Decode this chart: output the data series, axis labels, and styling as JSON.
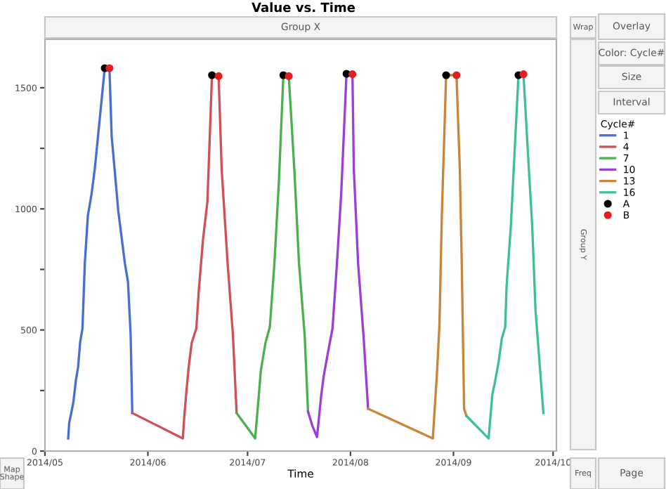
{
  "chart_data": {
    "type": "line",
    "title": "Value vs. Time",
    "xlabel": "Time",
    "legend_title": "Cycle#",
    "legend": "right",
    "grid": false,
    "xlim": [
      "2014-05-01",
      "2014-10-02"
    ],
    "xticks": [
      {
        "value": "2014-05-01",
        "label": "2014/05"
      },
      {
        "value": "2014-06-01",
        "label": "2014/06"
      },
      {
        "value": "2014-07-01",
        "label": "2014/07"
      },
      {
        "value": "2014-08-01",
        "label": "2014/08"
      },
      {
        "value": "2014-09-01",
        "label": "2014/09"
      },
      {
        "value": "2014-10-01",
        "label": "2014/10"
      }
    ],
    "ylim": [
      0,
      1700
    ],
    "yticks": [
      0,
      {
        "value": 250,
        "label": null
      },
      500,
      {
        "value": 750,
        "label": null
      },
      1000,
      {
        "value": 1250,
        "label": null
      },
      1500
    ],
    "series": [
      {
        "name": "1",
        "color": "#4a6fd0",
        "x": [
          "2014-05-08T00:00",
          "2014-05-08T07:00",
          "2014-05-08T22:00",
          "2014-05-09T14:00",
          "2014-05-10T07:00",
          "2014-05-11T00:00",
          "2014-05-11T14:00",
          "2014-05-12T07:00",
          "2014-05-13T00:00",
          "2014-05-13T22:00",
          "2014-05-15T00:00",
          "2014-05-16T00:00",
          "2014-05-19T00:00",
          "2014-05-20T10:00",
          "2014-05-21T02:00",
          "2014-05-23T02:00",
          "2014-05-25T02:00",
          "2014-05-26T00:00",
          "2014-05-26T19:00",
          "2014-05-27T07:00"
        ],
        "values": [
          52,
          116,
          157,
          204,
          291,
          349,
          448,
          506,
          774,
          972,
          1059,
          1164,
          1581,
          1581,
          1300,
          990,
          774,
          698,
          483,
          157
        ]
      },
      {
        "name": "4",
        "color": "#d0505a",
        "x": [
          "2014-05-27T07:00",
          "2014-06-11T12:00",
          "2014-06-11T22:00",
          "2014-06-12T12:00",
          "2014-06-13T07:00",
          "2014-06-14T05:00",
          "2014-06-15T14:00",
          "2014-06-16T07:00",
          "2014-06-17T14:00",
          "2014-06-18T22:00",
          "2014-06-20T07:00",
          "2014-06-22T07:00",
          "2014-06-23T05:00",
          "2014-06-25T00:00",
          "2014-06-26T14:00",
          "2014-06-27T17:00"
        ],
        "values": [
          157,
          52,
          136,
          233,
          349,
          448,
          506,
          658,
          873,
          1030,
          1552,
          1548,
          1164,
          774,
          483,
          157
        ]
      },
      {
        "name": "7",
        "color": "#4caf50",
        "x": [
          "2014-06-27T17:00",
          "2014-07-03T07:00",
          "2014-07-04T10:00",
          "2014-07-05T00:00",
          "2014-07-06T10:00",
          "2014-07-07T17:00",
          "2014-07-09T02:00",
          "2014-07-10T10:00",
          "2014-07-11T19:00",
          "2014-07-13T10:00",
          "2014-07-15T02:00",
          "2014-07-16T12:00",
          "2014-07-18T05:00",
          "2014-07-19T05:00"
        ],
        "values": [
          157,
          52,
          233,
          332,
          448,
          512,
          774,
          1106,
          1552,
          1548,
          1164,
          774,
          477,
          163
        ]
      },
      {
        "name": "10",
        "color": "#9b3fd6",
        "x": [
          "2014-07-19T05:00",
          "2014-07-20T12:00",
          "2014-07-21T22:00",
          "2014-07-23T05:00",
          "2014-07-23T22:00",
          "2014-07-25T05:00",
          "2014-07-26T14:00",
          "2014-07-27T22:00",
          "2014-07-29T05:00",
          "2014-07-30T19:00",
          "2014-08-01T14:00",
          "2014-08-02T00:00",
          "2014-08-03T07:00",
          "2014-08-04T22:00",
          "2014-08-06T07:00"
        ],
        "values": [
          163,
          105,
          58,
          233,
          308,
          407,
          506,
          774,
          1065,
          1558,
          1556,
          1164,
          774,
          477,
          175
        ]
      },
      {
        "name": "13",
        "color": "#c9853a",
        "x": [
          "2014-08-06T07:00",
          "2014-08-25T19:00",
          "2014-08-27T02:00",
          "2014-08-27T19:00",
          "2014-08-28T12:00",
          "2014-08-29T19:00",
          "2014-09-01T22:00",
          "2014-09-02T22:00",
          "2014-09-03T12:00",
          "2014-09-04T05:00",
          "2014-09-04T22:00"
        ],
        "values": [
          175,
          52,
          332,
          524,
          972,
          1552,
          1552,
          1164,
          774,
          175,
          145
        ]
      },
      {
        "name": "16",
        "color": "#3cbf9a",
        "x": [
          "2014-09-04T22:00",
          "2014-09-11T14:00",
          "2014-09-12T17:00",
          "2014-09-13T14:00",
          "2014-09-14T14:00",
          "2014-09-15T14:00",
          "2014-09-16T14:00",
          "2014-09-17T00:00",
          "2014-09-18T07:00",
          "2014-09-20T14:00",
          "2014-09-22T02:00",
          "2014-09-23T17:00",
          "2014-09-24T17:00",
          "2014-09-25T17:00",
          "2014-09-28T02:00"
        ],
        "values": [
          145,
          52,
          233,
          291,
          367,
          466,
          512,
          681,
          931,
          1552,
          1556,
          1164,
          931,
          582,
          157
        ]
      },
      {
        "name": "A",
        "type": "scatter",
        "marker": "circle",
        "color": "#000000",
        "x": [
          "2014-05-19T00:00",
          "2014-06-20T07:00",
          "2014-07-11T19:00",
          "2014-07-30T19:00",
          "2014-08-29T19:00",
          "2014-09-20T14:00"
        ],
        "values": [
          1581,
          1552,
          1552,
          1558,
          1552,
          1552
        ]
      },
      {
        "name": "B",
        "type": "scatter",
        "marker": "circle",
        "color": "#e02020",
        "x": [
          "2014-05-20T10:00",
          "2014-06-22T07:00",
          "2014-07-13T10:00",
          "2014-08-01T14:00",
          "2014-09-01T22:00",
          "2014-09-22T02:00"
        ],
        "values": [
          1581,
          1548,
          1548,
          1556,
          1552,
          1556
        ]
      }
    ],
    "annotations": [
      "Group X",
      "Wrap",
      "Overlay",
      "Color: Cycle#",
      "Size",
      "Interval",
      "Group Y",
      "Map Shape",
      "Freq",
      "Page"
    ]
  }
}
